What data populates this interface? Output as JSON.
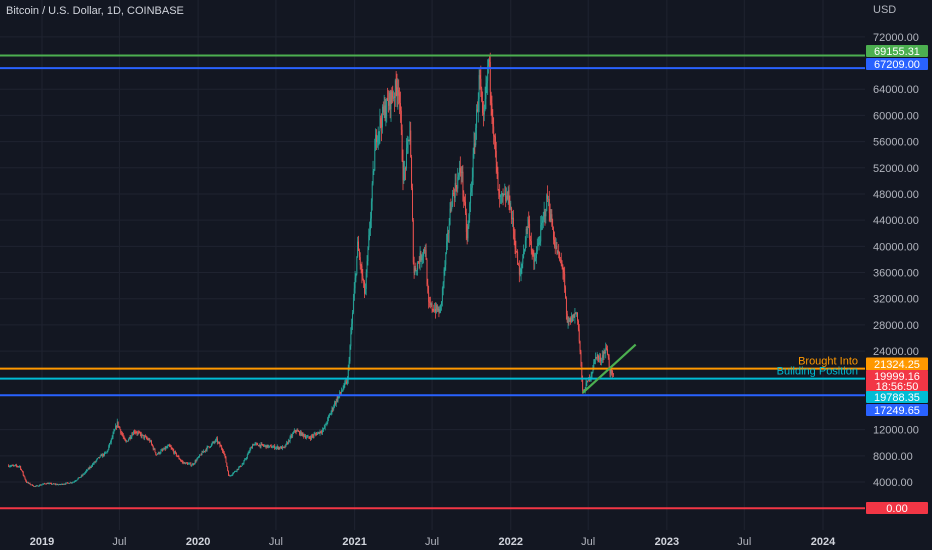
{
  "colors": {
    "background": "#131722",
    "grid": "#1f2330",
    "axis_text": "#b2b5be",
    "up": "#26a69a",
    "down": "#ef5350",
    "trendline": "#4caf50"
  },
  "chart_data": {
    "type": "candlestick",
    "title": "Bitcoin / U.S. Dollar, 1D, COINBASE",
    "yaxis_unit": "USD",
    "ylim": [
      0,
      76000
    ],
    "y_ticks": [
      4000,
      8000,
      12000,
      24000,
      28000,
      32000,
      36000,
      40000,
      44000,
      48000,
      52000,
      56000,
      60000,
      64000,
      72000
    ],
    "x_ticks": [
      {
        "label": "2019",
        "date": "2019-01-01",
        "year": true
      },
      {
        "label": "Jul",
        "date": "2019-07-01",
        "year": false
      },
      {
        "label": "2020",
        "date": "2020-01-01",
        "year": true
      },
      {
        "label": "Jul",
        "date": "2020-07-01",
        "year": false
      },
      {
        "label": "2021",
        "date": "2021-01-01",
        "year": true
      },
      {
        "label": "Jul",
        "date": "2021-07-01",
        "year": false
      },
      {
        "label": "2022",
        "date": "2022-01-01",
        "year": true
      },
      {
        "label": "Jul",
        "date": "2022-07-01",
        "year": false
      },
      {
        "label": "2023",
        "date": "2023-01-01",
        "year": true
      },
      {
        "label": "Jul",
        "date": "2023-07-01",
        "year": false
      },
      {
        "label": "2024",
        "date": "2024-01-01",
        "year": true
      }
    ],
    "price_path": [
      [
        "2018-10-15",
        6500
      ],
      [
        "2018-11-10",
        6400
      ],
      [
        "2018-11-25",
        4000
      ],
      [
        "2018-12-15",
        3300
      ],
      [
        "2019-01-10",
        3800
      ],
      [
        "2019-02-10",
        3600
      ],
      [
        "2019-03-15",
        4000
      ],
      [
        "2019-04-05",
        5000
      ],
      [
        "2019-05-15",
        7800
      ],
      [
        "2019-06-01",
        8500
      ],
      [
        "2019-06-26",
        13000
      ],
      [
        "2019-07-15",
        10000
      ],
      [
        "2019-08-05",
        11800
      ],
      [
        "2019-09-10",
        10300
      ],
      [
        "2019-09-25",
        8200
      ],
      [
        "2019-10-25",
        9500
      ],
      [
        "2019-11-25",
        7000
      ],
      [
        "2019-12-18",
        6600
      ],
      [
        "2020-01-15",
        8800
      ],
      [
        "2020-02-13",
        10400
      ],
      [
        "2020-03-01",
        8600
      ],
      [
        "2020-03-13",
        4800
      ],
      [
        "2020-04-15",
        6800
      ],
      [
        "2020-05-08",
        9800
      ],
      [
        "2020-06-15",
        9400
      ],
      [
        "2020-07-20",
        9200
      ],
      [
        "2020-08-15",
        11900
      ],
      [
        "2020-09-15",
        10700
      ],
      [
        "2020-10-20",
        12000
      ],
      [
        "2020-11-15",
        16000
      ],
      [
        "2020-12-15",
        19500
      ],
      [
        "2021-01-08",
        40000
      ],
      [
        "2021-01-25",
        32500
      ],
      [
        "2021-02-20",
        57000
      ],
      [
        "2021-03-13",
        61000
      ],
      [
        "2021-04-14",
        64800
      ],
      [
        "2021-04-25",
        50000
      ],
      [
        "2021-05-10",
        58000
      ],
      [
        "2021-05-19",
        36000
      ],
      [
        "2021-06-15",
        40000
      ],
      [
        "2021-06-22",
        31000
      ],
      [
        "2021-07-20",
        30000
      ],
      [
        "2021-08-15",
        47000
      ],
      [
        "2021-09-07",
        52000
      ],
      [
        "2021-09-21",
        41000
      ],
      [
        "2021-10-20",
        66000
      ],
      [
        "2021-10-28",
        58000
      ],
      [
        "2021-11-10",
        68500
      ],
      [
        "2021-11-26",
        54000
      ],
      [
        "2021-12-04",
        47000
      ],
      [
        "2021-12-28",
        47500
      ],
      [
        "2022-01-22",
        35000
      ],
      [
        "2022-02-10",
        44000
      ],
      [
        "2022-02-24",
        37000
      ],
      [
        "2022-03-28",
        47500
      ],
      [
        "2022-04-15",
        40000
      ],
      [
        "2022-05-05",
        36000
      ],
      [
        "2022-05-12",
        28000
      ],
      [
        "2022-06-05",
        30000
      ],
      [
        "2022-06-14",
        22000
      ],
      [
        "2022-06-18",
        17600
      ],
      [
        "2022-07-01",
        19500
      ],
      [
        "2022-07-10",
        21000
      ],
      [
        "2022-07-20",
        23500
      ],
      [
        "2022-07-27",
        22500
      ],
      [
        "2022-08-14",
        24500
      ],
      [
        "2022-08-20",
        21000
      ],
      [
        "2022-08-30",
        20000
      ]
    ],
    "trendline": {
      "from": [
        "2022-06-18",
        17600
      ],
      "to": [
        "2022-10-20",
        25000
      ]
    },
    "levels": [
      {
        "value": 69155.31,
        "label": "69155.31",
        "color": "#4caf50"
      },
      {
        "value": 67209.0,
        "label": "67209.00",
        "color": "#2962ff"
      },
      {
        "value": 21324.25,
        "label": "21324.25",
        "color": "#ff9800",
        "annotation": "Brought Into"
      },
      {
        "value": 19788.35,
        "label": "19788.35",
        "color": "#00bcd4",
        "annotation": "Building Position"
      },
      {
        "value": 17249.65,
        "label": "17249.65",
        "color": "#2962ff"
      },
      {
        "value": 0.0,
        "label": "0.00",
        "color": "#f23645"
      }
    ],
    "last_price": {
      "value": 19999.16,
      "label": "19999.16",
      "countdown": "18:56:50",
      "color": "#f23645"
    }
  }
}
